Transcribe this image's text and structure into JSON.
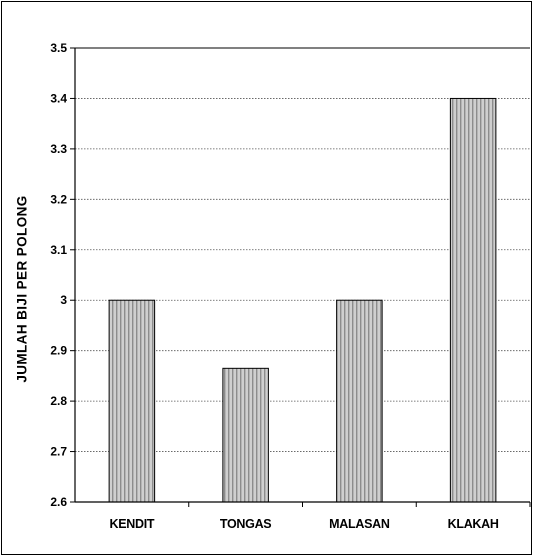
{
  "chart_data": {
    "type": "bar",
    "title": "",
    "xlabel": "",
    "ylabel": "JUMLAH BIJI PER POLONG",
    "categories": [
      "KENDIT",
      "TONGAS",
      "MALASAN",
      "KLAKAH"
    ],
    "values": [
      3.0,
      2.865,
      3.0,
      3.4
    ],
    "ylim": [
      2.6,
      3.5
    ],
    "yticks": [
      "2.6",
      "2.7",
      "2.8",
      "2.9",
      "3",
      "3.1",
      "3.2",
      "3.3",
      "3.4",
      "3.5"
    ],
    "grid": true,
    "legend": "none",
    "bar_fill": "#c8c8c8",
    "bar_stripe": "#8a8a8a"
  }
}
